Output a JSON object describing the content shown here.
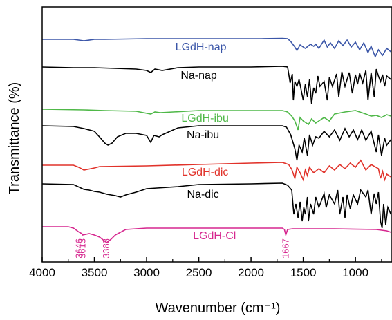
{
  "chart_data": {
    "type": "line",
    "title": "",
    "xlabel": "Wavenumber (cm⁻¹)",
    "ylabel": "Transmittance (%)",
    "xlim": [
      4000,
      650
    ],
    "x_reversed": true,
    "x_ticks": [
      4000,
      3500,
      3000,
      2500,
      2000,
      1500,
      1000
    ],
    "y_ticks_shown": false,
    "grid": false,
    "legend": "none (series labelled inline above each curve)",
    "series": [
      {
        "name": "LGdH-nap",
        "color": "#3b56a8",
        "points": [
          [
            4000,
            47
          ],
          [
            3700,
            47
          ],
          [
            3600,
            49
          ],
          [
            3500,
            47
          ],
          [
            3400,
            47
          ],
          [
            3000,
            46
          ],
          [
            2900,
            46
          ],
          [
            2500,
            46
          ],
          [
            1900,
            46
          ],
          [
            1700,
            45.5
          ],
          [
            1650,
            46
          ],
          [
            1620,
            50
          ],
          [
            1580,
            58
          ],
          [
            1560,
            63
          ],
          [
            1530,
            55
          ],
          [
            1480,
            60
          ],
          [
            1430,
            54
          ],
          [
            1400,
            57
          ],
          [
            1380,
            54
          ],
          [
            1350,
            60
          ],
          [
            1300,
            48
          ],
          [
            1270,
            58
          ],
          [
            1240,
            52
          ],
          [
            1200,
            60
          ],
          [
            1160,
            49
          ],
          [
            1120,
            56
          ],
          [
            1080,
            48
          ],
          [
            1040,
            58
          ],
          [
            1000,
            51
          ],
          [
            960,
            62
          ],
          [
            920,
            52
          ],
          [
            880,
            66
          ],
          [
            850,
            57
          ],
          [
            810,
            72
          ],
          [
            780,
            62
          ],
          [
            740,
            70
          ],
          [
            700,
            60
          ],
          [
            660,
            65
          ]
        ]
      },
      {
        "name": "Na-nap",
        "color": "#000000",
        "points": [
          [
            4000,
            87
          ],
          [
            3700,
            88
          ],
          [
            3500,
            88
          ],
          [
            3300,
            89
          ],
          [
            3100,
            90
          ],
          [
            3000,
            92
          ],
          [
            2960,
            95
          ],
          [
            2920,
            90
          ],
          [
            2850,
            92
          ],
          [
            2700,
            88
          ],
          [
            2500,
            87
          ],
          [
            2000,
            87
          ],
          [
            1700,
            86
          ],
          [
            1650,
            87
          ],
          [
            1625,
            110
          ],
          [
            1605,
            97
          ],
          [
            1595,
            135
          ],
          [
            1580,
            108
          ],
          [
            1560,
            115
          ],
          [
            1540,
            105
          ],
          [
            1500,
            135
          ],
          [
            1480,
            112
          ],
          [
            1460,
            130
          ],
          [
            1440,
            105
          ],
          [
            1420,
            140
          ],
          [
            1400,
            117
          ],
          [
            1380,
            125
          ],
          [
            1360,
            100
          ],
          [
            1340,
            115
          ],
          [
            1300,
            108
          ],
          [
            1270,
            135
          ],
          [
            1250,
            102
          ],
          [
            1220,
            115
          ],
          [
            1180,
            97
          ],
          [
            1160,
            130
          ],
          [
            1130,
            94
          ],
          [
            1100,
            115
          ],
          [
            1060,
            95
          ],
          [
            1030,
            125
          ],
          [
            1000,
            98
          ],
          [
            980,
            112
          ],
          [
            960,
            96
          ],
          [
            930,
            110
          ],
          [
            900,
            92
          ],
          [
            880,
            135
          ],
          [
            850,
            95
          ],
          [
            820,
            130
          ],
          [
            800,
            90
          ],
          [
            780,
            100
          ],
          [
            760,
            108
          ],
          [
            740,
            98
          ],
          [
            720,
            115
          ],
          [
            700,
            100
          ],
          [
            660,
            105
          ]
        ]
      },
      {
        "name": "LGdH-ibu",
        "color": "#4fb848",
        "points": [
          [
            4000,
            148
          ],
          [
            3600,
            149
          ],
          [
            3400,
            150
          ],
          [
            3100,
            151
          ],
          [
            2960,
            155
          ],
          [
            2920,
            152
          ],
          [
            2870,
            153
          ],
          [
            2500,
            150
          ],
          [
            2000,
            150
          ],
          [
            1700,
            150
          ],
          [
            1650,
            152
          ],
          [
            1610,
            158
          ],
          [
            1580,
            165
          ],
          [
            1550,
            178
          ],
          [
            1530,
            160
          ],
          [
            1500,
            165
          ],
          [
            1450,
            170
          ],
          [
            1420,
            162
          ],
          [
            1380,
            168
          ],
          [
            1300,
            160
          ],
          [
            1250,
            165
          ],
          [
            1200,
            155
          ],
          [
            1100,
            152
          ],
          [
            1000,
            150
          ],
          [
            900,
            155
          ],
          [
            850,
            158
          ],
          [
            800,
            157
          ],
          [
            750,
            160
          ],
          [
            700,
            156
          ],
          [
            660,
            158
          ]
        ]
      },
      {
        "name": "Na-ibu",
        "color": "#000000",
        "points": [
          [
            4000,
            172
          ],
          [
            3700,
            173
          ],
          [
            3600,
            176
          ],
          [
            3500,
            180
          ],
          [
            3440,
            190
          ],
          [
            3400,
            197
          ],
          [
            3370,
            200
          ],
          [
            3330,
            197
          ],
          [
            3280,
            188
          ],
          [
            3200,
            183
          ],
          [
            3100,
            183
          ],
          [
            3000,
            186
          ],
          [
            2960,
            196
          ],
          [
            2930,
            186
          ],
          [
            2880,
            188
          ],
          [
            2850,
            185
          ],
          [
            2700,
            175
          ],
          [
            2500,
            172
          ],
          [
            2000,
            172
          ],
          [
            1700,
            172
          ],
          [
            1660,
            174
          ],
          [
            1620,
            185
          ],
          [
            1580,
            205
          ],
          [
            1560,
            222
          ],
          [
            1540,
            200
          ],
          [
            1510,
            210
          ],
          [
            1490,
            190
          ],
          [
            1460,
            215
          ],
          [
            1440,
            185
          ],
          [
            1410,
            200
          ],
          [
            1380,
            188
          ],
          [
            1350,
            190
          ],
          [
            1300,
            180
          ],
          [
            1250,
            188
          ],
          [
            1200,
            178
          ],
          [
            1150,
            193
          ],
          [
            1100,
            176
          ],
          [
            1060,
            188
          ],
          [
            1020,
            178
          ],
          [
            980,
            192
          ],
          [
            940,
            178
          ],
          [
            900,
            193
          ],
          [
            850,
            180
          ],
          [
            800,
            210
          ],
          [
            780,
            185
          ],
          [
            750,
            215
          ],
          [
            720,
            190
          ],
          [
            700,
            200
          ],
          [
            660,
            192
          ]
        ]
      },
      {
        "name": "LGdH-dic",
        "color": "#e1322a",
        "points": [
          [
            4000,
            229
          ],
          [
            3700,
            229
          ],
          [
            3650,
            232
          ],
          [
            3600,
            236
          ],
          [
            3500,
            233
          ],
          [
            3450,
            231
          ],
          [
            3000,
            230
          ],
          [
            2500,
            228
          ],
          [
            2000,
            226
          ],
          [
            1700,
            225
          ],
          [
            1640,
            228
          ],
          [
            1610,
            235
          ],
          [
            1580,
            248
          ],
          [
            1560,
            232
          ],
          [
            1530,
            240
          ],
          [
            1500,
            250
          ],
          [
            1480,
            236
          ],
          [
            1460,
            244
          ],
          [
            1440,
            232
          ],
          [
            1400,
            240
          ],
          [
            1350,
            234
          ],
          [
            1300,
            240
          ],
          [
            1250,
            230
          ],
          [
            1200,
            236
          ],
          [
            1150,
            228
          ],
          [
            1100,
            234
          ],
          [
            1050,
            226
          ],
          [
            1000,
            232
          ],
          [
            950,
            222
          ],
          [
            900,
            236
          ],
          [
            850,
            228
          ],
          [
            780,
            234
          ],
          [
            760,
            248
          ],
          [
            740,
            238
          ],
          [
            720,
            250
          ],
          [
            700,
            242
          ],
          [
            660,
            246
          ]
        ]
      },
      {
        "name": "Na-dic",
        "color": "#000000",
        "points": [
          [
            4000,
            256
          ],
          [
            3700,
            257
          ],
          [
            3600,
            264
          ],
          [
            3550,
            265
          ],
          [
            3500,
            267
          ],
          [
            3450,
            268
          ],
          [
            3380,
            271
          ],
          [
            3300,
            273
          ],
          [
            3250,
            275
          ],
          [
            3200,
            272
          ],
          [
            3100,
            268
          ],
          [
            3000,
            263
          ],
          [
            2900,
            262
          ],
          [
            2700,
            260
          ],
          [
            2500,
            257
          ],
          [
            2000,
            256
          ],
          [
            1700,
            255
          ],
          [
            1650,
            258
          ],
          [
            1610,
            265
          ],
          [
            1590,
            300
          ],
          [
            1570,
            285
          ],
          [
            1550,
            305
          ],
          [
            1530,
            282
          ],
          [
            1510,
            310
          ],
          [
            1495,
            290
          ],
          [
            1480,
            300
          ],
          [
            1460,
            275
          ],
          [
            1450,
            310
          ],
          [
            1430,
            285
          ],
          [
            1400,
            300
          ],
          [
            1380,
            275
          ],
          [
            1350,
            290
          ],
          [
            1300,
            270
          ],
          [
            1280,
            290
          ],
          [
            1250,
            272
          ],
          [
            1200,
            285
          ],
          [
            1170,
            265
          ],
          [
            1150,
            300
          ],
          [
            1120,
            275
          ],
          [
            1100,
            305
          ],
          [
            1080,
            272
          ],
          [
            1050,
            292
          ],
          [
            1020,
            272
          ],
          [
            980,
            285
          ],
          [
            950,
            265
          ],
          [
            900,
            275
          ],
          [
            880,
            265
          ],
          [
            850,
            300
          ],
          [
            820,
            270
          ],
          [
            800,
            285
          ],
          [
            780,
            268
          ],
          [
            760,
            310
          ],
          [
            745,
            320
          ],
          [
            730,
            285
          ],
          [
            710,
            315
          ],
          [
            690,
            290
          ],
          [
            660,
            300
          ]
        ]
      },
      {
        "name": "LGdH-Cl",
        "color": "#d6278f",
        "points": [
          [
            4000,
            318
          ],
          [
            3750,
            318
          ],
          [
            3700,
            320
          ],
          [
            3646,
            326
          ],
          [
            3620,
            328
          ],
          [
            3613,
            330
          ],
          [
            3550,
            328
          ],
          [
            3500,
            330
          ],
          [
            3450,
            333
          ],
          [
            3383,
            341
          ],
          [
            3340,
            336
          ],
          [
            3300,
            330
          ],
          [
            3200,
            322
          ],
          [
            3000,
            320
          ],
          [
            2500,
            320
          ],
          [
            2000,
            320
          ],
          [
            1700,
            320
          ],
          [
            1680,
            322
          ],
          [
            1667,
            330
          ],
          [
            1650,
            322
          ],
          [
            1600,
            321
          ],
          [
            1200,
            321
          ],
          [
            800,
            322
          ],
          [
            700,
            324
          ],
          [
            660,
            326
          ]
        ]
      }
    ],
    "annotations": [
      "3646",
      "3613",
      "3383",
      "1667"
    ],
    "annotation_x": [
      3646,
      3613,
      3383,
      1667
    ]
  }
}
